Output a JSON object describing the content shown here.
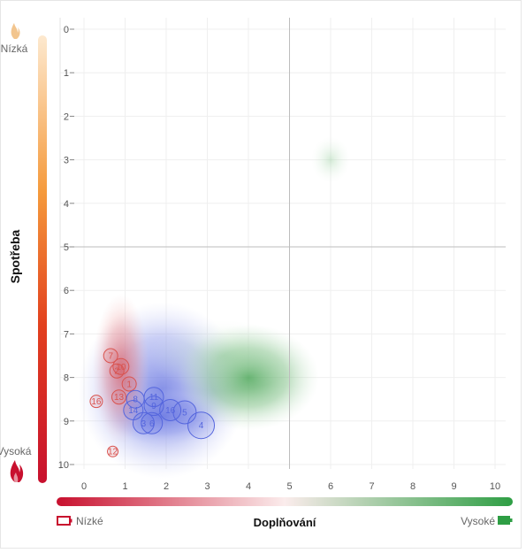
{
  "chart_data": {
    "type": "scatter",
    "xlabel": "Doplňování",
    "ylabel": "Spotřeba",
    "xlim": [
      0,
      10
    ],
    "ylim": [
      0,
      10
    ],
    "y_inverted": true,
    "x_ticks": [
      "0",
      "1",
      "2",
      "3",
      "4",
      "5",
      "6",
      "7",
      "8",
      "9",
      "10"
    ],
    "y_ticks": [
      "0",
      "1",
      "2",
      "3",
      "4",
      "5",
      "6",
      "7",
      "8",
      "9",
      "10"
    ],
    "quadrant_lines": {
      "x": 5,
      "y": 5
    },
    "y_scale_labels": {
      "top": "Nízká",
      "bottom": "Vysoká"
    },
    "x_scale_labels": {
      "left": "Nízké",
      "right": "Vysoké"
    },
    "grid": true,
    "colors": {
      "red": "#d9534f",
      "blue": "#5566dd",
      "green": "#3fa04a",
      "gradient_red": "#c8102e",
      "gradient_orange": "#f47b20",
      "gradient_light": "#fde4c0",
      "gradient_green": "#2e9e44"
    },
    "series": [
      {
        "color": "red",
        "points": [
          {
            "label": "7",
            "x": 0.65,
            "y": 7.5,
            "size": 8
          },
          {
            "label": "10",
            "x": 0.9,
            "y": 7.75,
            "size": 9
          },
          {
            "label": "2",
            "x": 0.8,
            "y": 7.85,
            "size": 8
          },
          {
            "label": "1",
            "x": 1.1,
            "y": 8.15,
            "size": 8
          },
          {
            "label": "13",
            "x": 0.85,
            "y": 8.45,
            "size": 8
          },
          {
            "label": "16",
            "x": 0.3,
            "y": 8.55,
            "size": 7
          },
          {
            "label": "12",
            "x": 0.7,
            "y": 9.7,
            "size": 6
          }
        ]
      },
      {
        "color": "blue",
        "points": [
          {
            "label": "8",
            "x": 1.25,
            "y": 8.5,
            "size": 10
          },
          {
            "label": "11",
            "x": 1.7,
            "y": 8.45,
            "size": 11
          },
          {
            "label": "9",
            "x": 1.7,
            "y": 8.65,
            "size": 11
          },
          {
            "label": "14",
            "x": 1.2,
            "y": 8.75,
            "size": 11
          },
          {
            "label": "16",
            "x": 2.1,
            "y": 8.75,
            "size": 12
          },
          {
            "label": "5",
            "x": 2.45,
            "y": 8.8,
            "size": 13
          },
          {
            "label": "3",
            "x": 1.45,
            "y": 9.05,
            "size": 12
          },
          {
            "label": "6",
            "x": 1.65,
            "y": 9.05,
            "size": 12
          },
          {
            "label": "4",
            "x": 2.85,
            "y": 9.1,
            "size": 15
          }
        ]
      }
    ],
    "density": {
      "red": [
        {
          "x": 0.9,
          "y": 7.8
        }
      ],
      "blue": [
        {
          "x": 1.9,
          "y": 8.3
        }
      ],
      "green": [
        {
          "x": 4.0,
          "y": 8.0
        },
        {
          "x": 6.0,
          "y": 3.0
        }
      ]
    }
  }
}
